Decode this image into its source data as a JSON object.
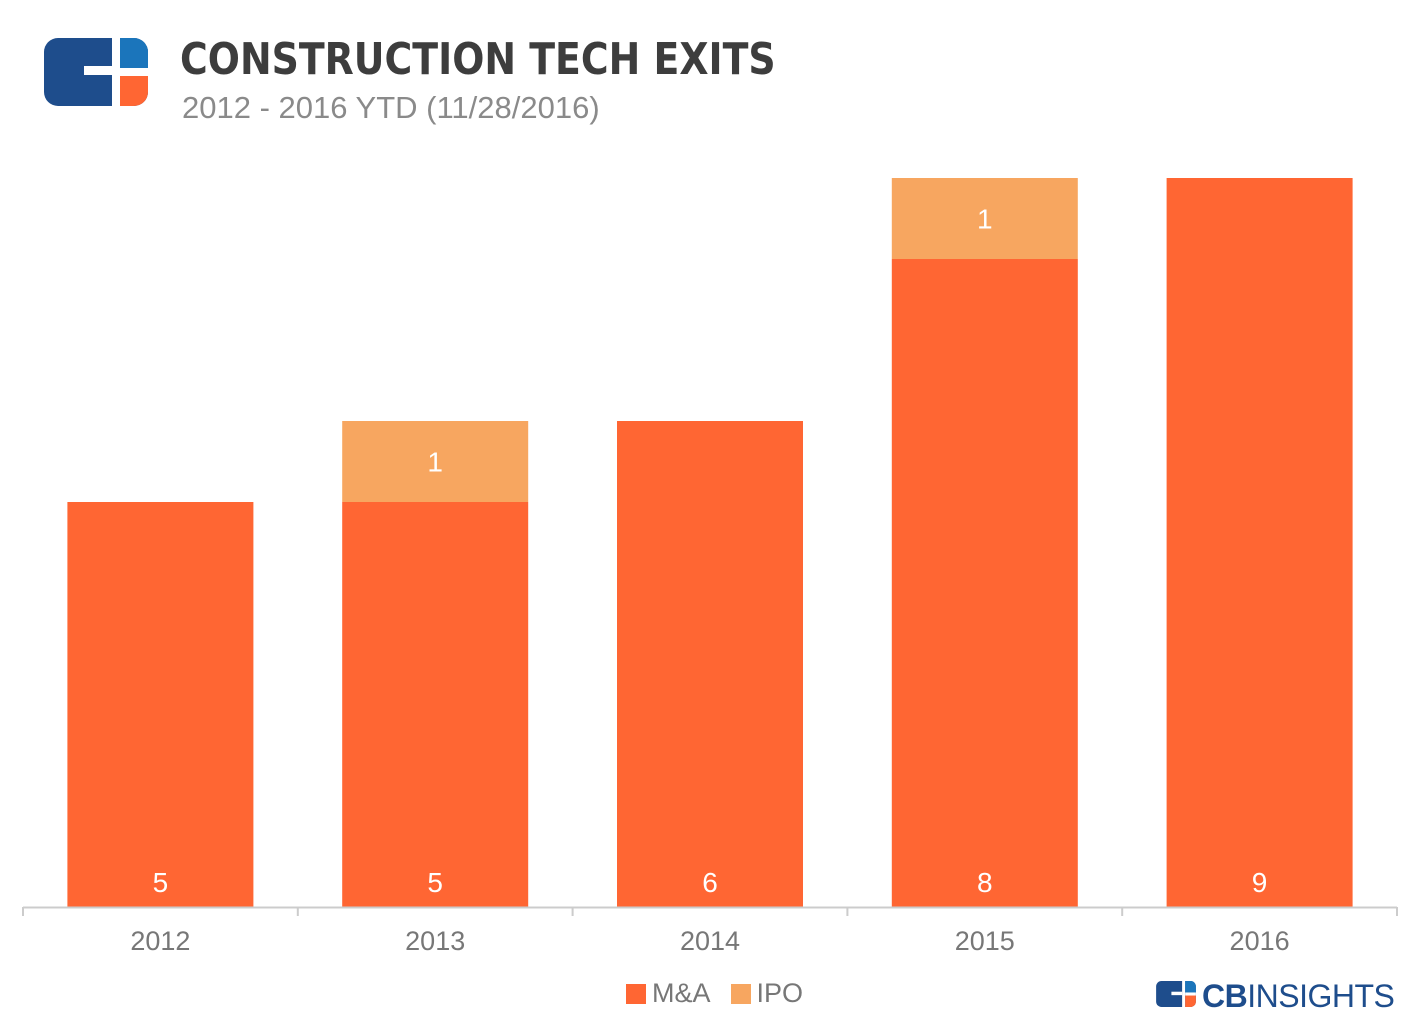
{
  "header": {
    "title": "CONSTRUCTION TECH EXITS",
    "subtitle": "2012 - 2016 YTD (11/28/2016)",
    "logo_icon": "cb-insights-logo-icon"
  },
  "colors": {
    "ma": "#FF6633",
    "ipo": "#F7A660",
    "logo_navy": "#1E4D8C",
    "logo_blue": "#1B75BB",
    "axis": "#cccccc",
    "tick_text": "#777777"
  },
  "legend": {
    "items": [
      {
        "label": "M&A",
        "color": "#FF6633"
      },
      {
        "label": "IPO",
        "color": "#F7A660"
      }
    ],
    "placement": "bottom-center"
  },
  "brand": {
    "bold": "CB",
    "rest": "INSIGHTS"
  },
  "chart_data": {
    "type": "bar",
    "stacked": true,
    "categories": [
      "2012",
      "2013",
      "2014",
      "2015",
      "2016"
    ],
    "series": [
      {
        "name": "M&A",
        "values": [
          5,
          5,
          6,
          8,
          9
        ],
        "color": "#FF6633"
      },
      {
        "name": "IPO",
        "values": [
          0,
          1,
          0,
          1,
          0
        ],
        "color": "#F7A660"
      }
    ],
    "ylim": [
      0,
      9
    ],
    "grid": false,
    "data_labels": {
      "M&A": [
        "5",
        "5",
        "6",
        "8",
        "9"
      ],
      "IPO": [
        "",
        "1",
        "",
        "1",
        ""
      ]
    }
  }
}
